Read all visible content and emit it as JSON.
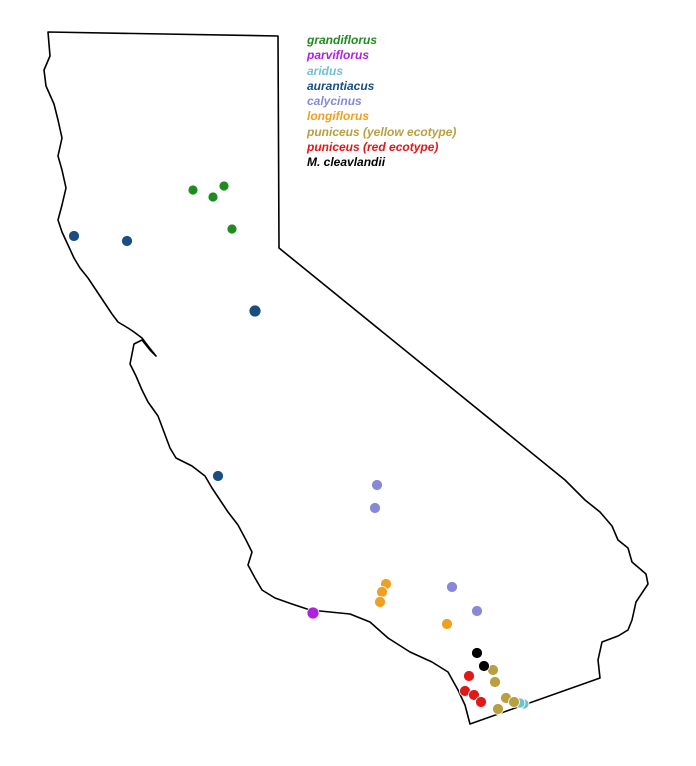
{
  "legend": [
    {
      "key": "grandiflorus",
      "label": "grandiflorus",
      "color": "#1e8c1e"
    },
    {
      "key": "parviflorus",
      "label": "parviflorus",
      "color": "#b020e0"
    },
    {
      "key": "aridus",
      "label": "aridus",
      "color": "#70c0d8"
    },
    {
      "key": "aurantiacus",
      "label": "aurantiacus",
      "color": "#1a4e80"
    },
    {
      "key": "calycinus",
      "label": "calycinus",
      "color": "#8888d8"
    },
    {
      "key": "longiflorus",
      "label": "longiflorus",
      "color": "#f0a020"
    },
    {
      "key": "puniceus-yellow",
      "label": "puniceus (yellow ecotype)",
      "color": "#b8a040"
    },
    {
      "key": "puniceus-red",
      "label": "puniceus (red ecotype)",
      "color": "#e01818"
    },
    {
      "key": "cleavlandii",
      "label": "M. cleavlandii",
      "color": "#000000"
    }
  ]
}
